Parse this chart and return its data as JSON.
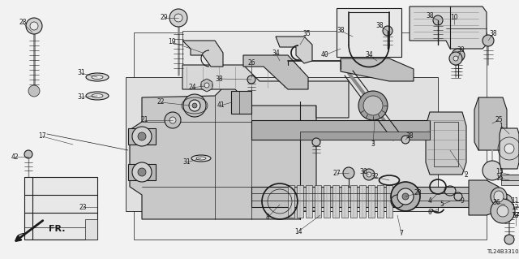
{
  "diagram_code": "TL24B3310A",
  "bg_color": "#f0f0f0",
  "fg_color": "#000000",
  "fig_width": 6.4,
  "fig_height": 3.19,
  "dpi": 100
}
